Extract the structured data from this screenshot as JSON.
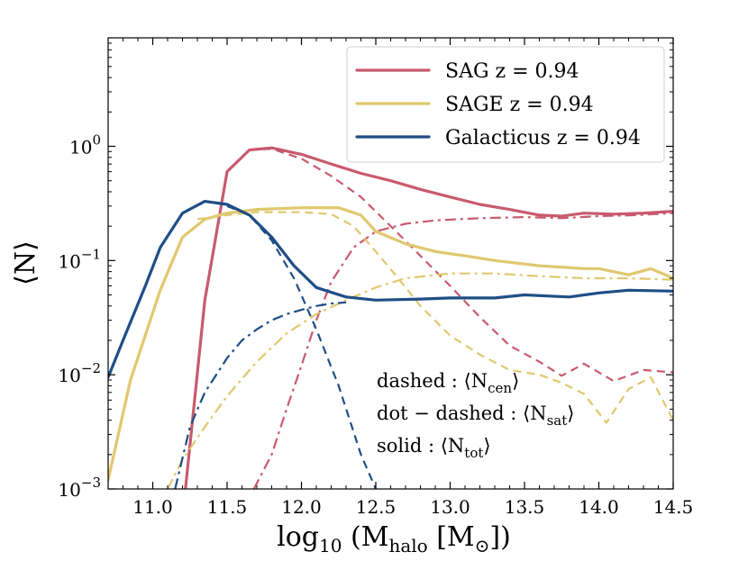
{
  "chart_data": {
    "type": "line",
    "xlabel": "log10 (Mhalo [M⊙])",
    "ylabel": "⟨N⟩",
    "xlim": [
      10.7,
      14.5
    ],
    "ylim_log10": [
      -3,
      0.95
    ],
    "yscale": "log",
    "xticks": [
      11.0,
      11.5,
      12.0,
      12.5,
      13.0,
      13.5,
      14.0,
      14.5
    ],
    "xtick_labels": [
      "11.0",
      "11.5",
      "12.0",
      "12.5",
      "13.0",
      "13.5",
      "14.0",
      "14.5"
    ],
    "yticks_log10": [
      -3,
      -2,
      -1,
      0
    ],
    "ytick_labels": [
      {
        "base": "10",
        "exp": "−3"
      },
      {
        "base": "10",
        "exp": "−2"
      },
      {
        "base": "10",
        "exp": "−1"
      },
      {
        "base": "10",
        "exp": "0"
      }
    ],
    "legend_position": "top-right",
    "legend": [
      {
        "label": "SAG z = 0.94",
        "color": "#c85a6e"
      },
      {
        "label": "SAGE z = 0.94",
        "color": "#e0c86e"
      },
      {
        "label": "Galacticus z = 0.94",
        "color": "#1f4e86"
      }
    ],
    "annotations": [
      {
        "prefix": "dashed : ⟨N",
        "sub": "cen",
        "suffix": "⟩"
      },
      {
        "prefix": "dot − dashed : ⟨N",
        "sub": "sat",
        "suffix": "⟩"
      },
      {
        "prefix": "solid : ⟨N",
        "sub": "tot",
        "suffix": "⟩"
      }
    ],
    "series": [
      {
        "name": "SAG total",
        "model": "SAG",
        "component": "tot",
        "style": "solid",
        "color": "#c85a6e",
        "x": [
          11.22,
          11.35,
          11.5,
          11.65,
          11.8,
          12.0,
          12.2,
          12.4,
          12.6,
          12.8,
          13.0,
          13.2,
          13.4,
          13.6,
          13.75,
          13.9,
          14.1,
          14.3,
          14.5
        ],
        "y": [
          0.001,
          0.045,
          0.6,
          0.93,
          0.97,
          0.85,
          0.7,
          0.58,
          0.5,
          0.42,
          0.36,
          0.31,
          0.28,
          0.25,
          0.245,
          0.26,
          0.255,
          0.26,
          0.27
        ]
      },
      {
        "name": "SAG centrals",
        "model": "SAG",
        "component": "cen",
        "style": "dashed",
        "color": "#c85a6e",
        "x": [
          11.22,
          11.35,
          11.5,
          11.65,
          11.8,
          12.0,
          12.2,
          12.4,
          12.6,
          12.8,
          13.0,
          13.2,
          13.4,
          13.6,
          13.75,
          13.9,
          14.1,
          14.3,
          14.5
        ],
        "y": [
          0.001,
          0.045,
          0.6,
          0.93,
          0.95,
          0.78,
          0.55,
          0.36,
          0.2,
          0.11,
          0.06,
          0.032,
          0.018,
          0.013,
          0.0098,
          0.0125,
          0.0088,
          0.011,
          0.0105
        ]
      },
      {
        "name": "SAG satellites",
        "model": "SAG",
        "component": "sat",
        "style": "dotdash",
        "color": "#c85a6e",
        "x": [
          11.68,
          11.8,
          11.9,
          12.0,
          12.1,
          12.2,
          12.35,
          12.5,
          12.7,
          12.9,
          13.2,
          13.5,
          13.75,
          14.0,
          14.25,
          14.5
        ],
        "y": [
          0.001,
          0.002,
          0.005,
          0.012,
          0.03,
          0.065,
          0.13,
          0.18,
          0.21,
          0.225,
          0.235,
          0.24,
          0.235,
          0.245,
          0.25,
          0.26
        ]
      },
      {
        "name": "SAGE total",
        "model": "SAGE",
        "component": "tot",
        "style": "solid",
        "color": "#e0c86e",
        "x": [
          10.7,
          10.85,
          11.05,
          11.2,
          11.35,
          11.5,
          11.7,
          12.0,
          12.25,
          12.4,
          12.5,
          12.7,
          12.9,
          13.1,
          13.3,
          13.6,
          13.9,
          14.0,
          14.2,
          14.35,
          14.5
        ],
        "y": [
          0.0012,
          0.009,
          0.055,
          0.16,
          0.23,
          0.26,
          0.28,
          0.29,
          0.29,
          0.25,
          0.18,
          0.14,
          0.12,
          0.11,
          0.1,
          0.09,
          0.085,
          0.085,
          0.075,
          0.085,
          0.07
        ]
      },
      {
        "name": "SAGE centrals",
        "model": "SAGE",
        "component": "cen",
        "style": "dashed",
        "color": "#e0c86e",
        "x": [
          11.3,
          11.5,
          11.7,
          12.0,
          12.2,
          12.35,
          12.5,
          12.65,
          12.8,
          13.0,
          13.2,
          13.4,
          13.6,
          13.75,
          13.9,
          14.05,
          14.2,
          14.35,
          14.5
        ],
        "y": [
          0.23,
          0.25,
          0.265,
          0.265,
          0.255,
          0.2,
          0.12,
          0.07,
          0.04,
          0.022,
          0.015,
          0.011,
          0.01,
          0.0085,
          0.0068,
          0.0038,
          0.0075,
          0.0095,
          0.004
        ]
      },
      {
        "name": "SAGE satellites",
        "model": "SAGE",
        "component": "sat",
        "style": "dotdash",
        "color": "#e0c86e",
        "x": [
          11.1,
          11.2,
          11.35,
          11.5,
          11.7,
          11.9,
          12.1,
          12.3,
          12.5,
          12.7,
          13.0,
          13.3,
          13.6,
          13.9,
          14.2,
          14.5
        ],
        "y": [
          0.001,
          0.0018,
          0.0035,
          0.0065,
          0.013,
          0.023,
          0.034,
          0.045,
          0.058,
          0.07,
          0.077,
          0.077,
          0.073,
          0.07,
          0.07,
          0.068
        ]
      },
      {
        "name": "Galacticus total",
        "model": "Galacticus",
        "component": "tot",
        "style": "solid",
        "color": "#1f4e86",
        "x": [
          10.7,
          10.8,
          10.95,
          11.05,
          11.2,
          11.35,
          11.5,
          11.65,
          11.8,
          11.95,
          12.1,
          12.3,
          12.5,
          12.8,
          13.0,
          13.3,
          13.5,
          13.8,
          14.0,
          14.2,
          14.5
        ],
        "y": [
          0.0095,
          0.02,
          0.06,
          0.13,
          0.26,
          0.33,
          0.31,
          0.25,
          0.16,
          0.09,
          0.058,
          0.048,
          0.045,
          0.046,
          0.047,
          0.047,
          0.05,
          0.048,
          0.052,
          0.055,
          0.054
        ]
      },
      {
        "name": "Galacticus centrals",
        "model": "Galacticus",
        "component": "cen",
        "style": "dashed",
        "color": "#1f4e86",
        "x": [
          11.5,
          11.65,
          11.8,
          11.95,
          12.1,
          12.25,
          12.4,
          12.5
        ],
        "y": [
          0.3,
          0.25,
          0.15,
          0.07,
          0.025,
          0.008,
          0.002,
          0.001
        ]
      },
      {
        "name": "Galacticus satellites",
        "model": "Galacticus",
        "component": "sat",
        "style": "dotdash",
        "color": "#1f4e86",
        "x": [
          11.15,
          11.25,
          11.35,
          11.5,
          11.6,
          11.7,
          11.8,
          11.9,
          12.0,
          12.1,
          12.2,
          12.3
        ],
        "y": [
          0.001,
          0.0035,
          0.007,
          0.014,
          0.02,
          0.025,
          0.03,
          0.034,
          0.037,
          0.04,
          0.042,
          0.043
        ]
      }
    ]
  }
}
